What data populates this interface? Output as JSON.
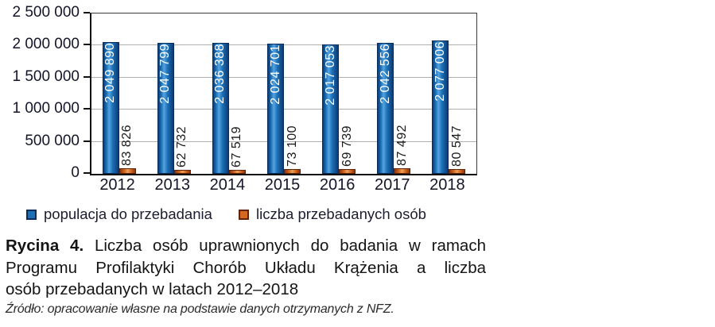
{
  "chart_data": {
    "type": "bar",
    "title": "",
    "categories": [
      "2012",
      "2013",
      "2014",
      "2015",
      "2016",
      "2017",
      "2018"
    ],
    "series": [
      {
        "name": "populacja do przebadania",
        "values": [
          2049890,
          2047799,
          2036388,
          2024701,
          2017053,
          2042556,
          2077006
        ],
        "labels": [
          "2 049 890",
          "2 047 799",
          "2 036 388",
          "2 024 701",
          "2 017 053",
          "2 042 556",
          "2 077 006"
        ]
      },
      {
        "name": "liczba przebadanych osób",
        "values": [
          83826,
          62732,
          67519,
          73100,
          69739,
          87492,
          80547
        ],
        "labels": [
          "83 826",
          "62 732",
          "67 519",
          "73 100",
          "69 739",
          "87 492",
          "80 547"
        ]
      }
    ],
    "xlabel": "",
    "ylabel": "",
    "ylim": [
      0,
      2500000
    ],
    "yticks": [
      {
        "value": 0,
        "label": "0"
      },
      {
        "value": 500000,
        "label": "500 000"
      },
      {
        "value": 1000000,
        "label": "1 000 000"
      },
      {
        "value": 1500000,
        "label": "1 500 000"
      },
      {
        "value": 2000000,
        "label": "2 000 000"
      },
      {
        "value": 2500000,
        "label": "2 500 000"
      }
    ],
    "grid": true,
    "legend_position": "bottom",
    "colors": {
      "blue_fill": "#1b6fb5",
      "blue_light": "#55a3e0",
      "blue_dark": "#0d3a75",
      "blue_border": "#0a2c5a",
      "orange_fill": "#d2691e",
      "orange_light": "#eda05f",
      "orange_dark": "#8a3410",
      "orange_border": "#5e2309",
      "grid": "#b0b0b0",
      "axis": "#101010",
      "label_on_blue": "#ffffff",
      "label_dark": "#1a1a1a"
    }
  },
  "caption": {
    "label": "Rycina 4.",
    "line1": "Liczba osób uprawnionych do badania w ramach",
    "line2": "Programu Profilaktyki Chorób Układu Krążenia a liczba",
    "line3": "osób przebadanych w latach 2012–2018",
    "source": "Źródło: opracowanie własne na podstawie danych otrzymanych z NFZ."
  }
}
